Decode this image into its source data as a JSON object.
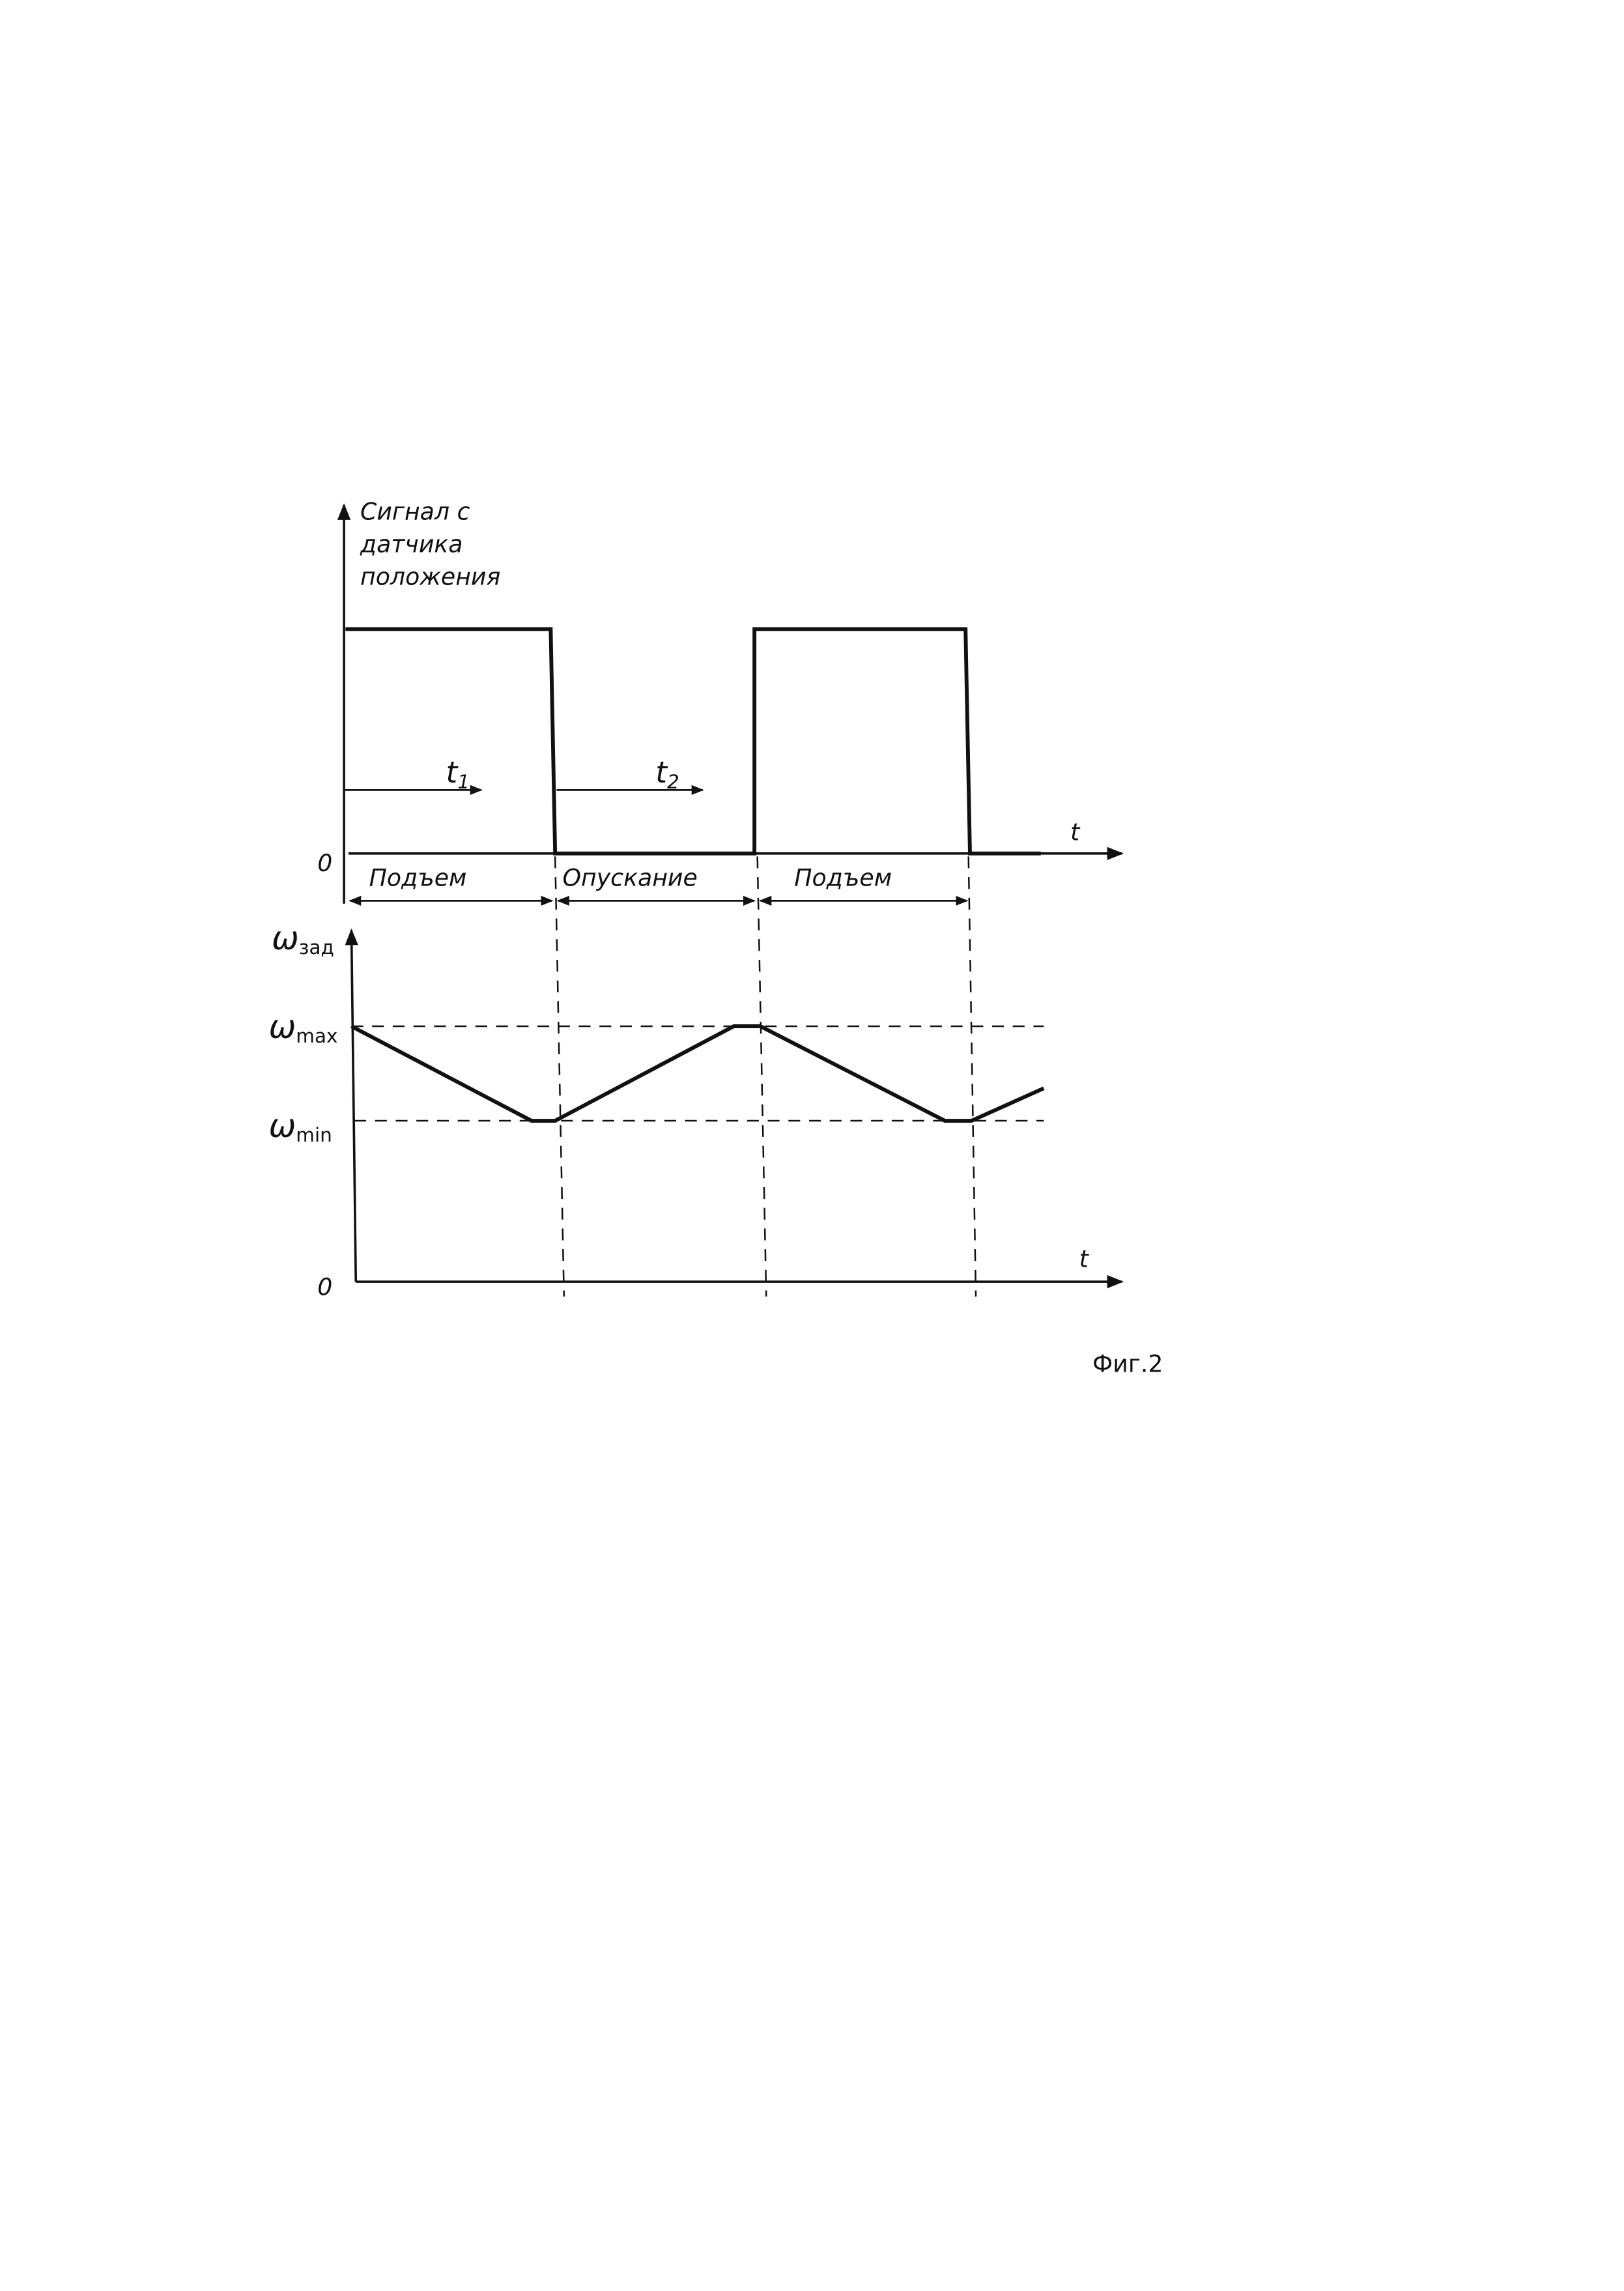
{
  "top_plot": {
    "y_axis_label": [
      "Сигнал с",
      "датчика",
      "положения"
    ],
    "x_axis_label": "t",
    "origin_label": "0",
    "interval_markers": [
      {
        "symbol": "t",
        "subscript": "1"
      },
      {
        "symbol": "t",
        "subscript": "2"
      }
    ],
    "phases": [
      "Подъем",
      "Опускание",
      "Подъем"
    ]
  },
  "bottom_plot": {
    "y_axis_label": {
      "symbol": "ω",
      "subscript": "зад"
    },
    "x_axis_label": "t",
    "origin_label": "0",
    "levels": [
      {
        "symbol": "ω",
        "subscript": "max"
      },
      {
        "symbol": "ω",
        "subscript": "min"
      }
    ]
  },
  "figure_caption": "Фиг.2",
  "colors": {
    "ink": "#111111",
    "background": "#ffffff"
  }
}
